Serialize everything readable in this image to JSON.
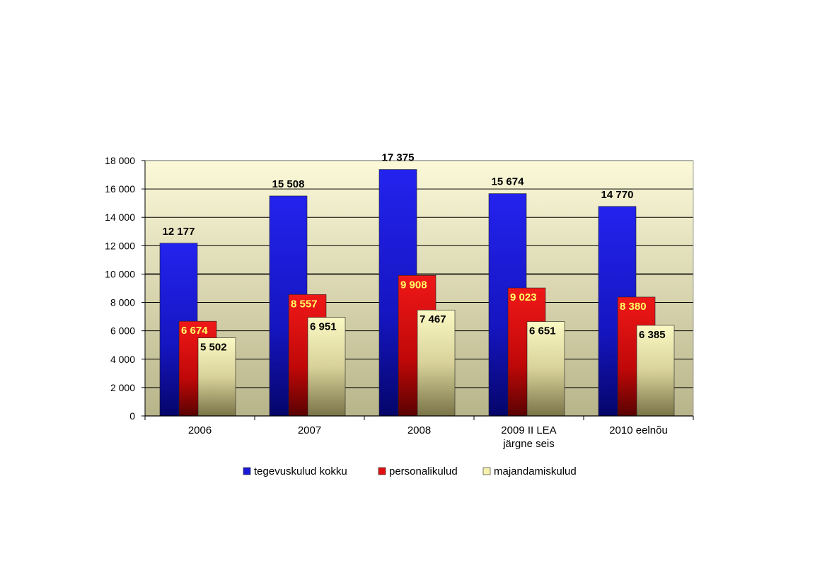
{
  "chart_data": {
    "type": "bar",
    "title": "",
    "xlabel": "",
    "ylabel": "",
    "ylim": [
      0,
      18000
    ],
    "yticks": [
      0,
      2000,
      4000,
      6000,
      8000,
      10000,
      12000,
      14000,
      16000,
      18000
    ],
    "ytick_labels": [
      "0",
      "2 000",
      "4 000",
      "6 000",
      "8 000",
      "10 000",
      "12 000",
      "14 000",
      "16 000",
      "18 000"
    ],
    "grid": true,
    "legend_position": "bottom",
    "categories": [
      [
        "2006"
      ],
      [
        "2007"
      ],
      [
        "2008"
      ],
      [
        "2009 II LEA",
        "järgne seis"
      ],
      [
        "2010 eelnõu"
      ]
    ],
    "series": [
      {
        "name": "tegevuskulud kokku",
        "color": "#1a1ad6",
        "values": [
          12177,
          15508,
          17375,
          15674,
          14770
        ],
        "labels": [
          "12 177",
          "15 508",
          "17 375",
          "15 674",
          "14 770"
        ],
        "label_color": "#000000"
      },
      {
        "name": "personalikulud",
        "color": "#e01010",
        "values": [
          6674,
          8557,
          9908,
          9023,
          8380
        ],
        "labels": [
          "6 674",
          "8 557",
          "9 908",
          "9 023",
          "8 380"
        ],
        "label_color": "#ffff66"
      },
      {
        "name": "majandamiskulud",
        "color": "#f5f2b0",
        "values": [
          5502,
          6951,
          7467,
          6651,
          6385
        ],
        "labels": [
          "5 502",
          "6 951",
          "7 467",
          "6 651",
          "6 385"
        ],
        "label_color": "#000000"
      }
    ],
    "plot_background": [
      "#fbf9d8",
      "#b8b48a"
    ]
  }
}
